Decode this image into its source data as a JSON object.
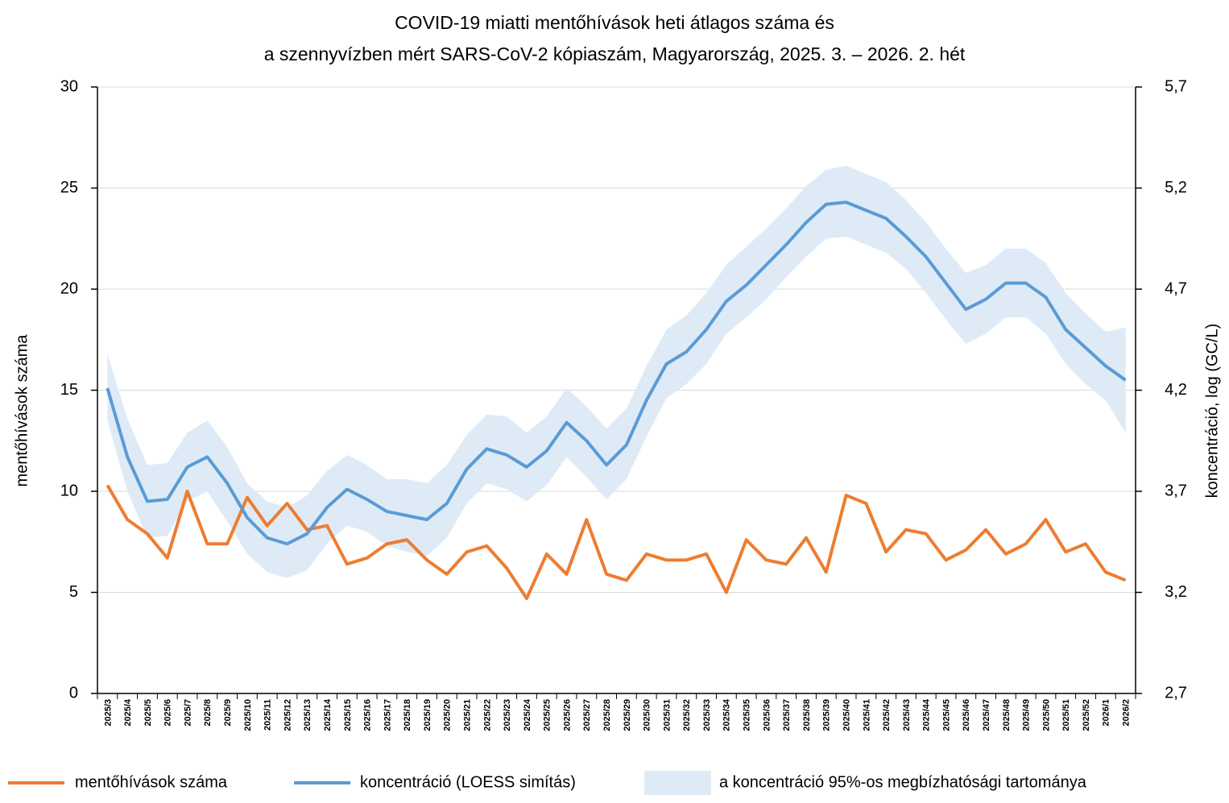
{
  "chart_data": {
    "type": "line",
    "title": [
      "COVID-19 miatti mentőhívások heti átlagos száma és",
      "a szennyvízben mért SARS-CoV-2 kópiaszám, Magyarország, 2025. 3. – 2026. 2. hét"
    ],
    "ylabel": "mentőhívások száma",
    "y2label": "koncentráció, log (GC/L)",
    "categories": [
      "2025/3",
      "2025/4",
      "2025/5",
      "2025/6",
      "2025/7",
      "2025/8",
      "2025/9",
      "2025/10",
      "2025/11",
      "2025/12",
      "2025/13",
      "2025/14",
      "2025/15",
      "2025/16",
      "2025/17",
      "2025/18",
      "2025/19",
      "2025/20",
      "2025/21",
      "2025/22",
      "2025/23",
      "2025/24",
      "2025/25",
      "2025/26",
      "2025/27",
      "2025/28",
      "2025/29",
      "2025/30",
      "2025/31",
      "2025/32",
      "2025/33",
      "2025/34",
      "2025/35",
      "2025/36",
      "2025/37",
      "2025/38",
      "2025/39",
      "2025/40",
      "2025/41",
      "2025/42",
      "2025/43",
      "2025/44",
      "2025/45",
      "2025/46",
      "2025/47",
      "2025/48",
      "2025/49",
      "2025/50",
      "2025/51",
      "2025/52",
      "2026/1",
      "2026/2"
    ],
    "ylim": [
      0,
      30
    ],
    "yticks": [
      0,
      5,
      10,
      15,
      20,
      25,
      30
    ],
    "y2lim": [
      2.7,
      5.7
    ],
    "y2ticks": [
      {
        "value": 2.7,
        "label": "2,7"
      },
      {
        "value": 3.2,
        "label": "3,2"
      },
      {
        "value": 3.7,
        "label": "3,7"
      },
      {
        "value": 4.2,
        "label": "4,2"
      },
      {
        "value": 4.7,
        "label": "4,7"
      },
      {
        "value": 5.2,
        "label": "5,2"
      },
      {
        "value": 5.7,
        "label": "5,7"
      }
    ],
    "grid": true,
    "legend": "bottom",
    "series": [
      {
        "name": "mentőhívások száma",
        "color": "#ed7d31",
        "values": [
          10.3,
          8.6,
          7.9,
          6.7,
          10.0,
          7.4,
          7.4,
          9.7,
          8.3,
          9.4,
          8.1,
          8.3,
          6.4,
          6.7,
          7.4,
          7.6,
          6.6,
          5.9,
          7.0,
          7.3,
          6.2,
          4.7,
          6.9,
          5.9,
          8.6,
          5.9,
          5.6,
          6.9,
          6.6,
          6.6,
          6.9,
          5.0,
          7.6,
          6.6,
          6.4,
          7.7,
          6.0,
          9.8,
          9.4,
          7.0,
          8.1,
          7.9,
          6.6,
          7.1,
          8.1,
          6.9,
          7.4,
          8.6,
          7.0,
          7.4,
          6.0,
          5.6
        ]
      },
      {
        "name": "koncentráció (LOESS simítás)",
        "color": "#5b9bd5",
        "axis": "y2",
        "values": [
          4.21,
          3.87,
          3.65,
          3.66,
          3.82,
          3.87,
          3.74,
          3.57,
          3.47,
          3.44,
          3.49,
          3.62,
          3.71,
          3.66,
          3.6,
          3.58,
          3.56,
          3.64,
          3.81,
          3.91,
          3.88,
          3.82,
          3.9,
          4.04,
          3.95,
          3.83,
          3.93,
          4.15,
          4.33,
          4.39,
          4.5,
          4.64,
          4.72,
          4.82,
          4.92,
          5.03,
          5.12,
          5.13,
          5.09,
          5.05,
          4.96,
          4.86,
          4.73,
          4.6,
          4.65,
          4.73,
          4.73,
          4.66,
          4.5,
          4.41,
          4.32,
          4.25
        ]
      },
      {
        "name": "a koncentráció 95%-os megbízhatósági tartománya",
        "color": "#deebf7",
        "axis": "y2",
        "type": "band",
        "upper": [
          4.38,
          4.06,
          3.83,
          3.84,
          3.99,
          4.05,
          3.92,
          3.74,
          3.65,
          3.62,
          3.68,
          3.8,
          3.88,
          3.83,
          3.76,
          3.76,
          3.74,
          3.83,
          3.98,
          4.08,
          4.07,
          3.99,
          4.07,
          4.21,
          4.12,
          4.01,
          4.11,
          4.32,
          4.5,
          4.57,
          4.68,
          4.82,
          4.91,
          5.0,
          5.1,
          5.21,
          5.29,
          5.31,
          5.27,
          5.23,
          5.14,
          5.03,
          4.9,
          4.78,
          4.82,
          4.9,
          4.9,
          4.83,
          4.68,
          4.58,
          4.49,
          4.51
        ],
        "lower": [
          4.05,
          3.7,
          3.47,
          3.48,
          3.65,
          3.7,
          3.55,
          3.39,
          3.3,
          3.27,
          3.31,
          3.44,
          3.53,
          3.5,
          3.43,
          3.4,
          3.38,
          3.47,
          3.64,
          3.74,
          3.71,
          3.65,
          3.73,
          3.87,
          3.77,
          3.66,
          3.76,
          3.97,
          4.16,
          4.23,
          4.33,
          4.48,
          4.56,
          4.65,
          4.76,
          4.86,
          4.95,
          4.96,
          4.92,
          4.88,
          4.8,
          4.68,
          4.55,
          4.43,
          4.48,
          4.56,
          4.56,
          4.48,
          4.33,
          4.23,
          4.15,
          3.99
        ]
      }
    ]
  }
}
